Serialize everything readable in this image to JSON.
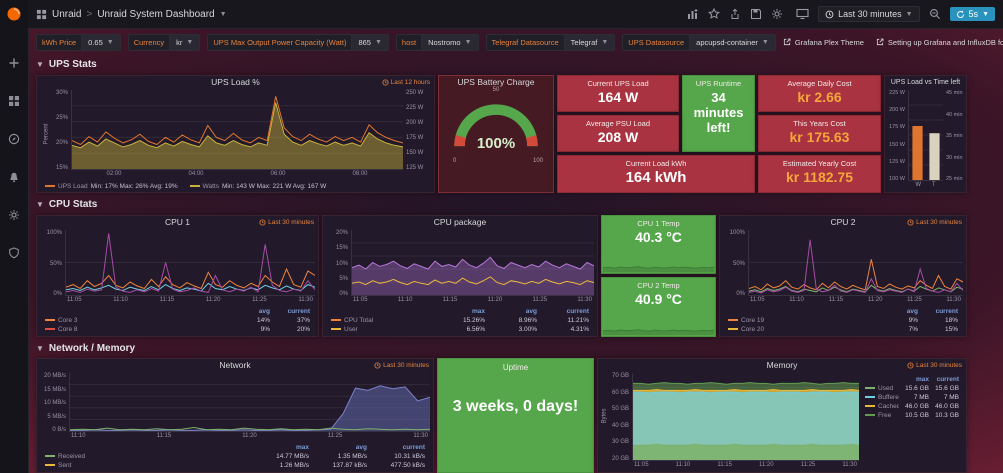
{
  "theme": {
    "accent_orange": "#e8833c",
    "green": "#56a64b",
    "red_panel": "#a93340",
    "legend_header_blue": "#7d9bd6"
  },
  "navbar": {
    "org": "Unraid",
    "dashboard_title": "Unraid System Dashboard",
    "time_range": "Last 30 minutes",
    "refresh": "5s"
  },
  "variables": [
    {
      "label": "kWh Price",
      "value": "0.65"
    },
    {
      "label": "Currency",
      "value": "kr"
    },
    {
      "label": "UPS Max Output Power Capacity (Watt)",
      "value": "865"
    },
    {
      "label": "host",
      "value": "Nostromo"
    },
    {
      "label": "Telegraf Datasource",
      "value": "Telegraf"
    },
    {
      "label": "UPS Datasource",
      "value": "apcupsd-container"
    }
  ],
  "links": [
    {
      "label": "Grafana Plex Theme"
    },
    {
      "label": "Setting up Grafana and InfluxDB for UPS monitoring on unRAID"
    }
  ],
  "rows": [
    {
      "title": "UPS Stats"
    },
    {
      "title": "CPU Stats"
    },
    {
      "title": "Network / Memory"
    }
  ],
  "ups": {
    "load_graph": {
      "title": "UPS Load %",
      "badge": "Last 12 hours",
      "ylabel": "Percent",
      "y_left": [
        "30%",
        "25%",
        "20%",
        "15%"
      ],
      "y_right": [
        "250 W",
        "225 W",
        "200 W",
        "175 W",
        "150 W",
        "125 W"
      ],
      "x": [
        "02:00",
        "04:00",
        "06:00",
        "08:00"
      ],
      "legend": [
        {
          "name": "UPS Load",
          "stats": "Min: 17% Max: 26% Avg: 19%",
          "color": "#e0752d"
        },
        {
          "name": "Watts",
          "stats": "Min: 143 W Max: 221 W Avg: 167 W",
          "color": "#c9b13b"
        }
      ]
    },
    "battery": {
      "title": "UPS Battery Charge",
      "value": "100%",
      "ticks": [
        "0",
        "50",
        "100"
      ]
    },
    "current_load": {
      "title": "Current UPS Load",
      "value": "164 W"
    },
    "avg_psu_load": {
      "title": "Average PSU Load",
      "value": "208 W"
    },
    "current_kwh": {
      "title": "Current Load kWh",
      "value": "164 kWh"
    },
    "runtime": {
      "title": "UPS Runtime",
      "value": "34 minutes left!"
    },
    "avg_daily_cost": {
      "title": "Average Daily Cost",
      "value": "kr  2.66"
    },
    "years_cost": {
      "title": "This Years Cost",
      "value": "kr  175.63"
    },
    "yearly_cost": {
      "title": "Estimated Yearly Cost",
      "value": "kr  1182.75"
    },
    "bars": {
      "title": "UPS Load vs Time left",
      "y_left": [
        "225 W",
        "200 W",
        "175 W",
        "150 W",
        "125 W",
        "100 W"
      ],
      "y_right": [
        "45 min",
        "40 min",
        "35 min",
        "30 min",
        "25 min"
      ],
      "x": [
        "W",
        "T"
      ]
    }
  },
  "cpu": {
    "cpu1": {
      "title": "CPU 1",
      "badge": "Last 30 minutes",
      "y": [
        "100%",
        "50%",
        "0%"
      ],
      "x": [
        "11:05",
        "11:10",
        "11:15",
        "11:20",
        "11:25",
        "11:30"
      ],
      "legend_headers": [
        "avg",
        "current"
      ],
      "legend": [
        {
          "name": "Core 3",
          "color": "#ef843c",
          "values": [
            "14%",
            "37%"
          ]
        },
        {
          "name": "Core 8",
          "color": "#e24d42",
          "values": [
            "9%",
            "20%"
          ]
        }
      ]
    },
    "package": {
      "title": "CPU package",
      "y": [
        "20%",
        "15%",
        "10%",
        "5%",
        "0%"
      ],
      "x": [
        "11:05",
        "11:10",
        "11:15",
        "11:20",
        "11:25",
        "11:30"
      ],
      "legend_headers": [
        "max",
        "avg",
        "current"
      ],
      "legend": [
        {
          "name": "CPU Total",
          "color": "#ef843c",
          "values": [
            "15.26%",
            "8.96%",
            "11.21%"
          ]
        },
        {
          "name": "User",
          "color": "#eab839",
          "values": [
            "6.56%",
            "3.00%",
            "4.31%"
          ]
        }
      ]
    },
    "temp1": {
      "title": "CPU 1 Temp",
      "value": "40.3 °C"
    },
    "temp2": {
      "title": "CPU 2 Temp",
      "value": "40.9 °C"
    },
    "cpu2": {
      "title": "CPU 2",
      "badge": "Last 30 minutes",
      "y": [
        "100%",
        "50%",
        "0%"
      ],
      "x": [
        "11:05",
        "11:10",
        "11:15",
        "11:20",
        "11:25",
        "11:30"
      ],
      "legend_headers": [
        "avg",
        "current"
      ],
      "legend": [
        {
          "name": "Core 19",
          "color": "#ef843c",
          "values": [
            "9%",
            "18%"
          ]
        },
        {
          "name": "Core 20",
          "color": "#eab839",
          "values": [
            "7%",
            "15%"
          ]
        }
      ]
    }
  },
  "netmem": {
    "network": {
      "title": "Network",
      "badge": "Last 30 minutes",
      "y": [
        "20 MB/s",
        "15 MB/s",
        "10 MB/s",
        "5 MB/s",
        "0 B/s"
      ],
      "x": [
        "11:10",
        "11:15",
        "11:20",
        "11:25",
        "11:30"
      ],
      "legend_headers": [
        "max",
        "avg",
        "current"
      ],
      "legend": [
        {
          "name": "Received",
          "color": "#7eb26d",
          "values": [
            "14.77 MB/s",
            "1.35 MB/s",
            "10.31 kB/s"
          ]
        },
        {
          "name": "Sent",
          "color": "#eab839",
          "values": [
            "1.26 MB/s",
            "137.87 kB/s",
            "477.50 kB/s"
          ]
        }
      ]
    },
    "uptime": {
      "title": "Uptime",
      "value": "3 weeks, 0 days!"
    },
    "memory": {
      "title": "Memory",
      "badge": "Last 30 minutes",
      "ylabel": "Bytes",
      "y": [
        "70 GB",
        "60 GB",
        "50 GB",
        "40 GB",
        "30 GB",
        "20 GB"
      ],
      "x": [
        "11:05",
        "11:10",
        "11:15",
        "11:20",
        "11:25",
        "11:30"
      ],
      "legend_headers": [
        "max",
        "current"
      ],
      "legend": [
        {
          "name": "Used",
          "color": "#7eb26d",
          "values": [
            "15.6 GB",
            "15.6 GB"
          ]
        },
        {
          "name": "Buffered",
          "color": "#6ed0e0",
          "values": [
            "7 MB",
            "7 MB"
          ]
        },
        {
          "name": "Cached",
          "color": "#eab839",
          "values": [
            "46.0 GB",
            "46.0 GB"
          ]
        },
        {
          "name": "Free",
          "color": "#629e51",
          "values": [
            "10.5 GB",
            "10.3 GB"
          ]
        }
      ]
    }
  },
  "charts": {
    "ups": {
      "grid": 4,
      "series": [
        {
          "color": "#c9b13b",
          "fill": "rgba(201,177,59,0.45)",
          "points": [
            0.3,
            0.27,
            0.34,
            0.29,
            0.38,
            0.33,
            0.28,
            0.31,
            0.36,
            0.3,
            0.27,
            0.33,
            0.29,
            0.35,
            0.31,
            0.28,
            0.42,
            0.33,
            0.3,
            0.36,
            0.31,
            0.28,
            0.33,
            0.3,
            0.84,
            0.44,
            0.34,
            0.3,
            0.36,
            0.32,
            0.29,
            0.34,
            0.3,
            0.33,
            0.29,
            0.46,
            0.38,
            0.33,
            0.3,
            0.28
          ]
        },
        {
          "color": "#e0752d",
          "points": [
            0.36,
            0.31,
            0.41,
            0.34,
            0.47,
            0.39,
            0.33,
            0.37,
            0.44,
            0.35,
            0.31,
            0.4,
            0.34,
            0.43,
            0.37,
            0.33,
            0.55,
            0.4,
            0.36,
            0.45,
            0.37,
            0.33,
            0.4,
            0.36,
            0.92,
            0.52,
            0.41,
            0.36,
            0.44,
            0.38,
            0.34,
            0.41,
            0.36,
            0.4,
            0.34,
            0.56,
            0.46,
            0.4,
            0.36,
            0.33
          ]
        }
      ]
    },
    "cpu1": {
      "grid": 1,
      "series": [
        {
          "color": "#6ed0e0",
          "points": [
            0.08,
            0.1,
            0.07,
            0.12,
            0.08,
            0.11,
            0.15,
            0.09,
            0.07,
            0.12,
            0.09,
            0.07,
            0.13,
            0.08,
            0.16,
            0.1,
            0.07,
            0.11,
            0.09,
            0.06,
            0.18,
            0.1,
            0.08,
            0.13,
            0.09,
            0.07,
            0.11,
            0.08,
            0.15,
            0.11,
            0.08,
            0.14,
            0.09,
            0.07,
            0.16,
            0.12
          ]
        },
        {
          "color": "#ef843c",
          "points": [
            0.12,
            0.16,
            0.1,
            0.22,
            0.13,
            0.18,
            0.3,
            0.15,
            0.11,
            0.2,
            0.14,
            0.1,
            0.24,
            0.13,
            0.28,
            0.16,
            0.11,
            0.19,
            0.14,
            0.1,
            0.35,
            0.16,
            0.12,
            0.22,
            0.15,
            0.11,
            0.18,
            0.13,
            0.3,
            0.2,
            0.13,
            0.4,
            0.16,
            0.12,
            0.37,
            0.3
          ]
        },
        {
          "color": "#a64ca6",
          "points": [
            0.05,
            0.07,
            0.04,
            0.09,
            0.06,
            0.08,
            0.95,
            0.12,
            0.06,
            0.04,
            0.08,
            0.05,
            0.1,
            0.06,
            0.5,
            0.09,
            0.05,
            0.07,
            0.11,
            0.06,
            0.04,
            0.3,
            0.08,
            0.05,
            0.09,
            0.06,
            0.12,
            0.05,
            0.78,
            0.15,
            0.07,
            0.05,
            0.09,
            0.06,
            0.22,
            0.08
          ]
        }
      ]
    },
    "pkg": {
      "grid": 4,
      "series": [
        {
          "color": "#b877d9",
          "fill": "rgba(184,119,217,0.35)",
          "points": [
            0.42,
            0.46,
            0.4,
            0.5,
            0.44,
            0.47,
            0.52,
            0.45,
            0.41,
            0.48,
            0.44,
            0.4,
            0.52,
            0.44,
            0.47,
            0.43,
            0.55,
            0.46,
            0.42,
            0.49,
            0.58,
            0.45,
            0.41,
            0.5,
            0.46,
            0.42,
            0.47,
            0.43,
            0.52,
            0.46,
            0.42,
            0.48,
            0.44,
            0.4,
            0.5,
            0.45
          ]
        },
        {
          "color": "#eab839",
          "points": [
            0.18,
            0.2,
            0.16,
            0.22,
            0.18,
            0.2,
            0.24,
            0.19,
            0.16,
            0.21,
            0.18,
            0.16,
            0.23,
            0.18,
            0.21,
            0.18,
            0.26,
            0.2,
            0.17,
            0.22,
            0.28,
            0.19,
            0.16,
            0.22,
            0.2,
            0.17,
            0.21,
            0.18,
            0.24,
            0.2,
            0.17,
            0.21,
            0.19,
            0.16,
            0.22,
            0.19
          ]
        }
      ]
    },
    "cpu2": {
      "grid": 1,
      "series": [
        {
          "color": "#7eb26d",
          "points": [
            0.06,
            0.08,
            0.05,
            0.1,
            0.07,
            0.09,
            0.13,
            0.07,
            0.05,
            0.09,
            0.07,
            0.05,
            0.11,
            0.07,
            0.12,
            0.08,
            0.05,
            0.09,
            0.07,
            0.05,
            0.15,
            0.08,
            0.06,
            0.1,
            0.07,
            0.05,
            0.09,
            0.06,
            0.13,
            0.09,
            0.06,
            0.11,
            0.08,
            0.05,
            0.12,
            0.09
          ]
        },
        {
          "color": "#ef843c",
          "points": [
            0.1,
            0.13,
            0.08,
            0.17,
            0.11,
            0.14,
            0.22,
            0.12,
            0.09,
            0.16,
            0.11,
            0.08,
            0.18,
            0.11,
            0.2,
            0.13,
            0.09,
            0.15,
            0.11,
            0.08,
            0.55,
            0.13,
            0.1,
            0.17,
            0.12,
            0.09,
            0.14,
            0.11,
            0.22,
            0.15,
            0.1,
            0.3,
            0.13,
            0.09,
            0.25,
            0.2
          ]
        },
        {
          "color": "#a64ca6",
          "points": [
            0.04,
            0.06,
            0.03,
            0.08,
            0.05,
            0.07,
            0.12,
            0.06,
            0.04,
            0.07,
            0.85,
            0.09,
            0.05,
            0.07,
            0.15,
            0.06,
            0.04,
            0.08,
            0.06,
            0.04,
            0.25,
            0.07,
            0.05,
            0.08,
            0.06,
            0.04,
            0.09,
            0.05,
            0.4,
            0.1,
            0.06,
            0.04,
            0.08,
            0.05,
            0.18,
            0.07
          ]
        }
      ]
    },
    "network": {
      "grid": 4,
      "series": [
        {
          "color": "#7b82c9",
          "fill": "rgba(110,120,200,0.45)",
          "points": [
            0.01,
            0.01,
            0.02,
            0.01,
            0.01,
            0.02,
            0.01,
            0.01,
            0.02,
            0.01,
            0.01,
            0.02,
            0.01,
            0.01,
            0.02,
            0.01,
            0.01,
            0.02,
            0.01,
            0.01,
            0.02,
            0.03,
            0.3,
            0.74,
            0.7,
            0.78,
            0.73,
            0.76,
            0.52,
            0.58
          ]
        },
        {
          "color": "#7eb26d",
          "points": [
            0.02,
            0.03,
            0.02,
            0.05,
            0.02,
            0.03,
            0.02,
            0.04,
            0.02,
            0.03,
            0.06,
            0.02,
            0.03,
            0.02,
            0.05,
            0.03,
            0.02,
            0.04,
            0.02,
            0.03,
            0.02,
            0.05,
            0.03,
            0.02,
            0.04,
            0.03,
            0.02,
            0.03,
            0.02,
            0.03
          ]
        }
      ]
    },
    "memory": {
      "grid": 5,
      "series": [
        {
          "color": "#629e51",
          "fill": "rgba(98,158,81,0.55)",
          "points": [
            0.88,
            0.88,
            0.87,
            0.88,
            0.89,
            0.88,
            0.88,
            0.87,
            0.88,
            0.88,
            0.89,
            0.88,
            0.87,
            0.88,
            0.88,
            0.89,
            0.88,
            0.88,
            0.87,
            0.88,
            0.88,
            0.88,
            0.89,
            0.88,
            0.87,
            0.88,
            0.88,
            0.89,
            0.88,
            0.88
          ]
        },
        {
          "color": "#eab839",
          "fill": "rgba(234,184,57,0.8)",
          "points": [
            0.8,
            0.8,
            0.8,
            0.81,
            0.8,
            0.8,
            0.8,
            0.8,
            0.81,
            0.8,
            0.8,
            0.8,
            0.8,
            0.81,
            0.8,
            0.8,
            0.8,
            0.8,
            0.81,
            0.8,
            0.8,
            0.8,
            0.8,
            0.81,
            0.8,
            0.8,
            0.8,
            0.8,
            0.81,
            0.8
          ]
        },
        {
          "color": "#6ed0e0",
          "fill": "rgba(110,208,224,0.75)",
          "points": [
            0.78,
            0.78,
            0.77,
            0.78,
            0.78,
            0.78,
            0.77,
            0.78,
            0.78,
            0.78,
            0.77,
            0.78,
            0.78,
            0.78,
            0.77,
            0.78,
            0.78,
            0.78,
            0.77,
            0.78,
            0.78,
            0.78,
            0.77,
            0.78,
            0.78,
            0.78,
            0.77,
            0.78,
            0.78,
            0.78
          ]
        },
        {
          "color": "#7eb26d",
          "fill": "rgba(126,178,109,0.9)",
          "points": [
            0.17,
            0.17,
            0.17,
            0.18,
            0.17,
            0.17,
            0.17,
            0.17,
            0.18,
            0.17,
            0.17,
            0.17,
            0.17,
            0.18,
            0.17,
            0.17,
            0.17,
            0.17,
            0.18,
            0.17,
            0.17,
            0.17,
            0.17,
            0.18,
            0.17,
            0.17,
            0.17,
            0.17,
            0.18,
            0.17
          ]
        }
      ]
    },
    "temp_spark": {
      "grid": 0,
      "series": [
        {
          "color": "#3a7f35",
          "fill": "rgba(0,0,0,0.12)",
          "points": [
            0.3,
            0.34,
            0.28,
            0.36,
            0.31,
            0.33,
            0.38,
            0.3,
            0.28,
            0.35,
            0.31,
            0.29,
            0.36,
            0.3,
            0.34,
            0.31,
            0.28,
            0.33,
            0.3,
            0.35
          ]
        }
      ]
    },
    "ups_bars": {
      "grid": 5,
      "type": "bars",
      "values": [
        0.6,
        0.52
      ],
      "colors": [
        "#e0752d",
        "#d8d2be"
      ]
    }
  }
}
